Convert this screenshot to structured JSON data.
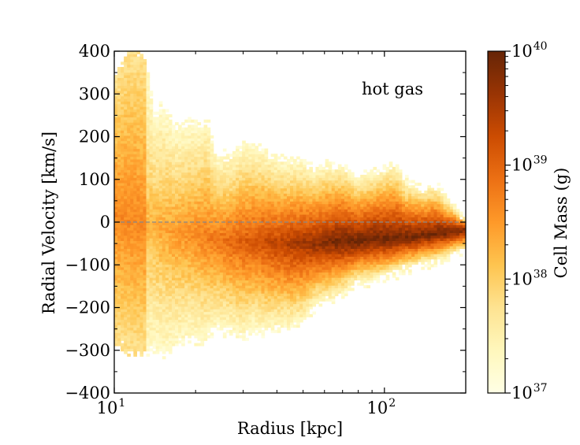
{
  "chart_data": {
    "type": "heatmap",
    "annotation": "hot gas",
    "annotation_color": "#b22222",
    "xlabel": "Radius   [kpc]",
    "ylabel": "Radial Velocity  [km/s]",
    "xscale": "log",
    "xlim": [
      10,
      200
    ],
    "ylim": [
      -400,
      400
    ],
    "x_ticks": [
      {
        "base": "10",
        "exp": "1",
        "value": 10
      },
      {
        "base": "10",
        "exp": "2",
        "value": 100
      }
    ],
    "y_ticks": [
      "400",
      "300",
      "200",
      "100",
      "0",
      "−100",
      "−200",
      "−300",
      "−400"
    ],
    "reference_line": {
      "y": 0,
      "style": "dashed",
      "color": "#888888"
    },
    "colorbar": {
      "label": "Cell Mass (g)",
      "scale": "log",
      "range": [
        1e+37,
        1e+40
      ],
      "ticks": [
        {
          "base": "10",
          "exp": "40"
        },
        {
          "base": "10",
          "exp": "39"
        },
        {
          "base": "10",
          "exp": "38"
        },
        {
          "base": "10",
          "exp": "37"
        }
      ],
      "colormap": [
        "#ffffe5",
        "#fff7bc",
        "#fee391",
        "#fec44f",
        "#fe9929",
        "#ec7014",
        "#cc4c02",
        "#993404",
        "#662506"
      ]
    },
    "envelope": {
      "radius_kpc": [
        10,
        11,
        12,
        13,
        14,
        15,
        17,
        19,
        21,
        22,
        24,
        27,
        30,
        33,
        36,
        40,
        45,
        50,
        55,
        60,
        70,
        80,
        90,
        100,
        110,
        120,
        130,
        140,
        150,
        160,
        170,
        180,
        190,
        200
      ],
      "upper_kms": [
        330,
        390,
        400,
        390,
        250,
        270,
        220,
        235,
        225,
        245,
        150,
        160,
        185,
        180,
        170,
        150,
        145,
        145,
        125,
        135,
        135,
        110,
        120,
        130,
        140,
        95,
        90,
        80,
        90,
        80,
        55,
        40,
        20,
        10
      ],
      "lower_kms": [
        -280,
        -300,
        -310,
        -305,
        -300,
        -310,
        -290,
        -270,
        -280,
        -270,
        -250,
        -260,
        -270,
        -250,
        -260,
        -250,
        -250,
        -235,
        -200,
        -190,
        -170,
        -140,
        -140,
        -130,
        -120,
        -110,
        -105,
        -95,
        -95,
        -90,
        -85,
        -75,
        -70,
        -65
      ],
      "ridge_kms": [
        20,
        10,
        0,
        -10,
        -15,
        -20,
        -25,
        -30,
        -30,
        -35,
        -40,
        -45,
        -45,
        -45,
        -45,
        -50,
        -50,
        -50,
        -50,
        -45,
        -45,
        -45,
        -40,
        -40,
        -40,
        -35,
        -35,
        -30,
        -30,
        -25,
        -25,
        -20,
        -20,
        -15
      ]
    }
  }
}
